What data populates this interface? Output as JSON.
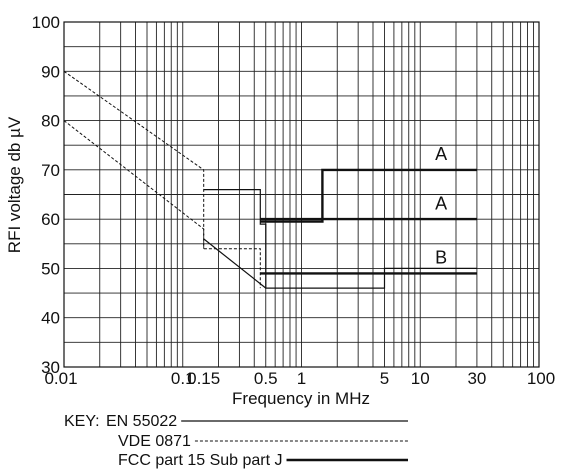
{
  "chart_data": {
    "type": "line",
    "xscale": "log",
    "xlim": [
      0.01,
      100
    ],
    "ylim": [
      30,
      100
    ],
    "grid": true,
    "xlabel": "Frequency in MHz",
    "ylabel": "RFI voltage db µV",
    "x_tick_labels": [
      {
        "value": 0.01,
        "label": "0.01"
      },
      {
        "value": 0.1,
        "label": "0.1"
      },
      {
        "value": 0.15,
        "label": "0.15"
      },
      {
        "value": 0.5,
        "label": "0.5"
      },
      {
        "value": 1,
        "label": "1"
      },
      {
        "value": 5,
        "label": "5"
      },
      {
        "value": 10,
        "label": "10"
      },
      {
        "value": 30,
        "label": "30"
      },
      {
        "value": 100,
        "label": "100"
      }
    ],
    "y_tick_labels": [
      {
        "value": 30,
        "label": "30"
      },
      {
        "value": 40,
        "label": "40"
      },
      {
        "value": 50,
        "label": "50"
      },
      {
        "value": 60,
        "label": "60"
      },
      {
        "value": 70,
        "label": "70"
      },
      {
        "value": 80,
        "label": "80"
      },
      {
        "value": 90,
        "label": "90"
      },
      {
        "value": 100,
        "label": "100"
      }
    ],
    "series": [
      {
        "style": "thin",
        "points": [
          [
            0.15,
            66
          ],
          [
            0.45,
            66
          ],
          [
            0.45,
            59
          ],
          [
            0.5,
            59
          ],
          [
            0.5,
            56
          ],
          [
            0.5,
            46
          ],
          [
            5,
            46
          ],
          [
            5,
            50
          ],
          [
            30,
            50
          ]
        ]
      },
      {
        "style": "thin",
        "points": [
          [
            0.15,
            56
          ],
          [
            0.5,
            46
          ]
        ]
      },
      {
        "style": "dashed",
        "points": [
          [
            0.01,
            90
          ],
          [
            0.15,
            70
          ],
          [
            0.15,
            54
          ],
          [
            0.45,
            54
          ],
          [
            0.45,
            46
          ]
        ]
      },
      {
        "style": "dashed",
        "points": [
          [
            0.01,
            80
          ],
          [
            0.15,
            58
          ],
          [
            0.15,
            54
          ]
        ]
      },
      {
        "style": "thick",
        "points": [
          [
            0.45,
            59.5
          ],
          [
            1.5,
            59.5
          ],
          [
            1.5,
            70
          ],
          [
            30,
            70
          ]
        ]
      },
      {
        "style": "thick",
        "points": [
          [
            0.45,
            60
          ],
          [
            30,
            60
          ]
        ]
      },
      {
        "style": "thick",
        "points": [
          [
            0.45,
            49
          ],
          [
            30,
            49
          ]
        ]
      }
    ],
    "annotations": [
      {
        "text": "A",
        "x": 15,
        "y": 72
      },
      {
        "text": "A",
        "x": 15,
        "y": 62
      },
      {
        "text": "B",
        "x": 15,
        "y": 51
      }
    ],
    "legend": {
      "placement": "bottom-left",
      "prefix": "KEY:",
      "entries": [
        {
          "label": "EN 55022",
          "style": "thin"
        },
        {
          "label": "VDE 0871",
          "style": "dashed"
        },
        {
          "label": "FCC part 15 Sub part J",
          "style": "thick"
        }
      ]
    }
  }
}
